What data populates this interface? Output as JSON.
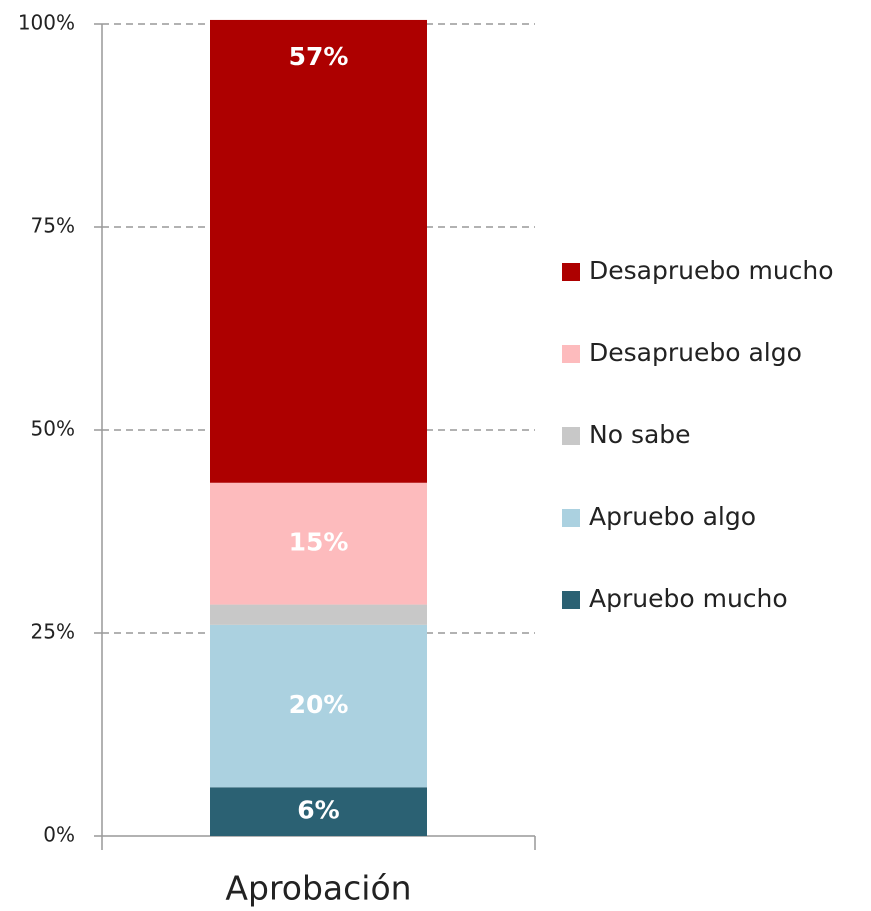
{
  "chart_data": {
    "type": "stacked_bar",
    "categories": [
      "Aprobación"
    ],
    "series": [
      {
        "name": "Apruebo mucho",
        "color": "#2b6173",
        "values": [
          6
        ],
        "value_labels": [
          "6%"
        ]
      },
      {
        "name": "Apruebo algo",
        "color": "#abd1e0",
        "values": [
          20
        ],
        "value_labels": [
          "20%"
        ]
      },
      {
        "name": "No sabe",
        "color": "#c8c8c8",
        "values": [
          2.5
        ]
      },
      {
        "name": "Desapruebo algo",
        "color": "#fdbbbd",
        "values": [
          15
        ],
        "value_labels": [
          "15%"
        ]
      },
      {
        "name": "Desapruebo mucho",
        "color": "#ad0000",
        "values": [
          57
        ],
        "value_labels": [
          "57%"
        ]
      }
    ],
    "ylim": [
      0,
      100
    ],
    "yticks": [
      {
        "value": 0,
        "label": "0%"
      },
      {
        "value": 25,
        "label": "25%"
      },
      {
        "value": 50,
        "label": "50%"
      },
      {
        "value": 75,
        "label": "75%"
      },
      {
        "value": 100,
        "label": "100%"
      }
    ],
    "grid": true,
    "legend": "right"
  }
}
